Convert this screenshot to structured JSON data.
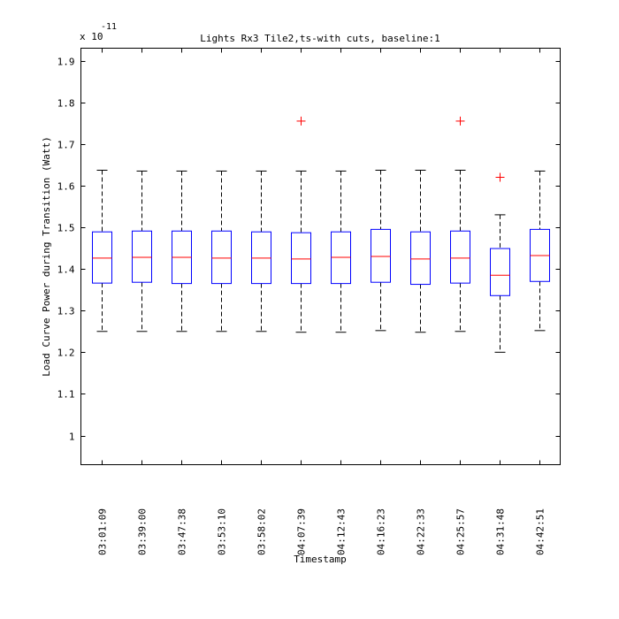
{
  "chart_data": {
    "type": "box",
    "title": "Lights Rx3 Tile2,ts-with cuts, baseline:1",
    "xlabel": "Timestamp",
    "ylabel": "Load Curve Power during Transition (Watt)",
    "y_multiplier_base": "x 10",
    "y_multiplier_exponent": "-11",
    "ylim": [
      0.93,
      1.93
    ],
    "yticks": [
      1,
      1.1,
      1.2,
      1.3,
      1.4,
      1.5,
      1.6,
      1.7,
      1.8,
      1.9
    ],
    "ytick_labels": [
      "1",
      "1.1",
      "1.2",
      "1.3",
      "1.4",
      "1.5",
      "1.6",
      "1.7",
      "1.8",
      "1.9"
    ],
    "categories": [
      "03:01:09",
      "03:39:00",
      "03:47:38",
      "03:53:10",
      "03:58:02",
      "04:07:39",
      "04:12:43",
      "04:16:23",
      "04:22:33",
      "04:25:57",
      "04:31:48",
      "04:42:51"
    ],
    "boxes": [
      {
        "whisker_low": 1.25,
        "q1": 1.366,
        "median": 1.426,
        "q3": 1.489,
        "whisker_high": 1.637,
        "outliers": []
      },
      {
        "whisker_low": 1.25,
        "q1": 1.368,
        "median": 1.428,
        "q3": 1.491,
        "whisker_high": 1.635,
        "outliers": []
      },
      {
        "whisker_low": 1.25,
        "q1": 1.365,
        "median": 1.428,
        "q3": 1.491,
        "whisker_high": 1.635,
        "outliers": []
      },
      {
        "whisker_low": 1.25,
        "q1": 1.365,
        "median": 1.426,
        "q3": 1.491,
        "whisker_high": 1.635,
        "outliers": []
      },
      {
        "whisker_low": 1.25,
        "q1": 1.365,
        "median": 1.426,
        "q3": 1.489,
        "whisker_high": 1.635,
        "outliers": []
      },
      {
        "whisker_low": 1.248,
        "q1": 1.365,
        "median": 1.424,
        "q3": 1.487,
        "whisker_high": 1.635,
        "outliers": [
          1.755
        ]
      },
      {
        "whisker_low": 1.248,
        "q1": 1.365,
        "median": 1.428,
        "q3": 1.489,
        "whisker_high": 1.635,
        "outliers": []
      },
      {
        "whisker_low": 1.252,
        "q1": 1.368,
        "median": 1.43,
        "q3": 1.495,
        "whisker_high": 1.637,
        "outliers": []
      },
      {
        "whisker_low": 1.248,
        "q1": 1.363,
        "median": 1.424,
        "q3": 1.489,
        "whisker_high": 1.637,
        "outliers": []
      },
      {
        "whisker_low": 1.25,
        "q1": 1.366,
        "median": 1.426,
        "q3": 1.491,
        "whisker_high": 1.637,
        "outliers": [
          1.755
        ]
      },
      {
        "whisker_low": 1.2,
        "q1": 1.336,
        "median": 1.385,
        "q3": 1.449,
        "whisker_high": 1.53,
        "outliers": [
          1.62
        ]
      },
      {
        "whisker_low": 1.252,
        "q1": 1.37,
        "median": 1.432,
        "q3": 1.495,
        "whisker_high": 1.635,
        "outliers": []
      }
    ],
    "colors": {
      "box": "#0000ff",
      "median": "#ff0000",
      "whisker": "#000000",
      "outlier": "#ff0000"
    },
    "grid": false,
    "legend": "none"
  }
}
